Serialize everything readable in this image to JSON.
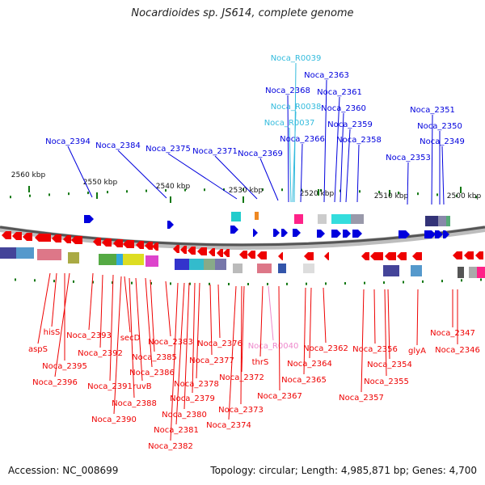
{
  "title": "Nocardioides sp. JS614, complete genome",
  "footer": {
    "accession": "Accession: NC_008699",
    "topology": "Topology: circular; Length: 4,985,871 bp; Genes: 4,700"
  },
  "colors": {
    "forward": "#0000dd",
    "reverse": "#ee0000",
    "rna_forward": "#33bbdd",
    "rna_reverse": "#ee88cc",
    "tick": "#117711"
  },
  "scale_labels": [
    "2560 kbp",
    "2550 kbp",
    "2540 kbp",
    "2530 kbp",
    "2520 kbp",
    "2510 kbp",
    "2500 kbp"
  ],
  "upper_labels": [
    "Noca_R0039",
    "Noca_2363",
    "Noca_2368",
    "Noca_2361",
    "Noca_R0038",
    "Noca_2360",
    "Noca_R0037",
    "Noca_2359",
    "Noca_2366",
    "Noca_2358",
    "Noca_2394",
    "Noca_2384",
    "Noca_2375",
    "Noca_2371",
    "Noca_2369",
    "Noca_2351",
    "Noca_2350",
    "Noca_2349",
    "Noca_2353"
  ],
  "lower_labels": [
    "hisS",
    "aspS",
    "Noca_2395",
    "Noca_2396",
    "Noca_2393",
    "Noca_2392",
    "Noca_2391",
    "secD",
    "Noca_2390",
    "Noca_2388",
    "ruvB",
    "Noca_2386",
    "Noca_2385",
    "Noca_2383",
    "Noca_2382",
    "Noca_2381",
    "Noca_2380",
    "Noca_2379",
    "Noca_2378",
    "Noca_2377",
    "Noca_2376",
    "Noca_2374",
    "Noca_2373",
    "Noca_2372",
    "Noca_R0040",
    "thrS",
    "Noca_2367",
    "Noca_2365",
    "Noca_2364",
    "Noca_2362",
    "Noca_2356",
    "Noca_2357",
    "Noca_2354",
    "Noca_2355",
    "glyA",
    "Noca_2347",
    "Noca_2346"
  ]
}
